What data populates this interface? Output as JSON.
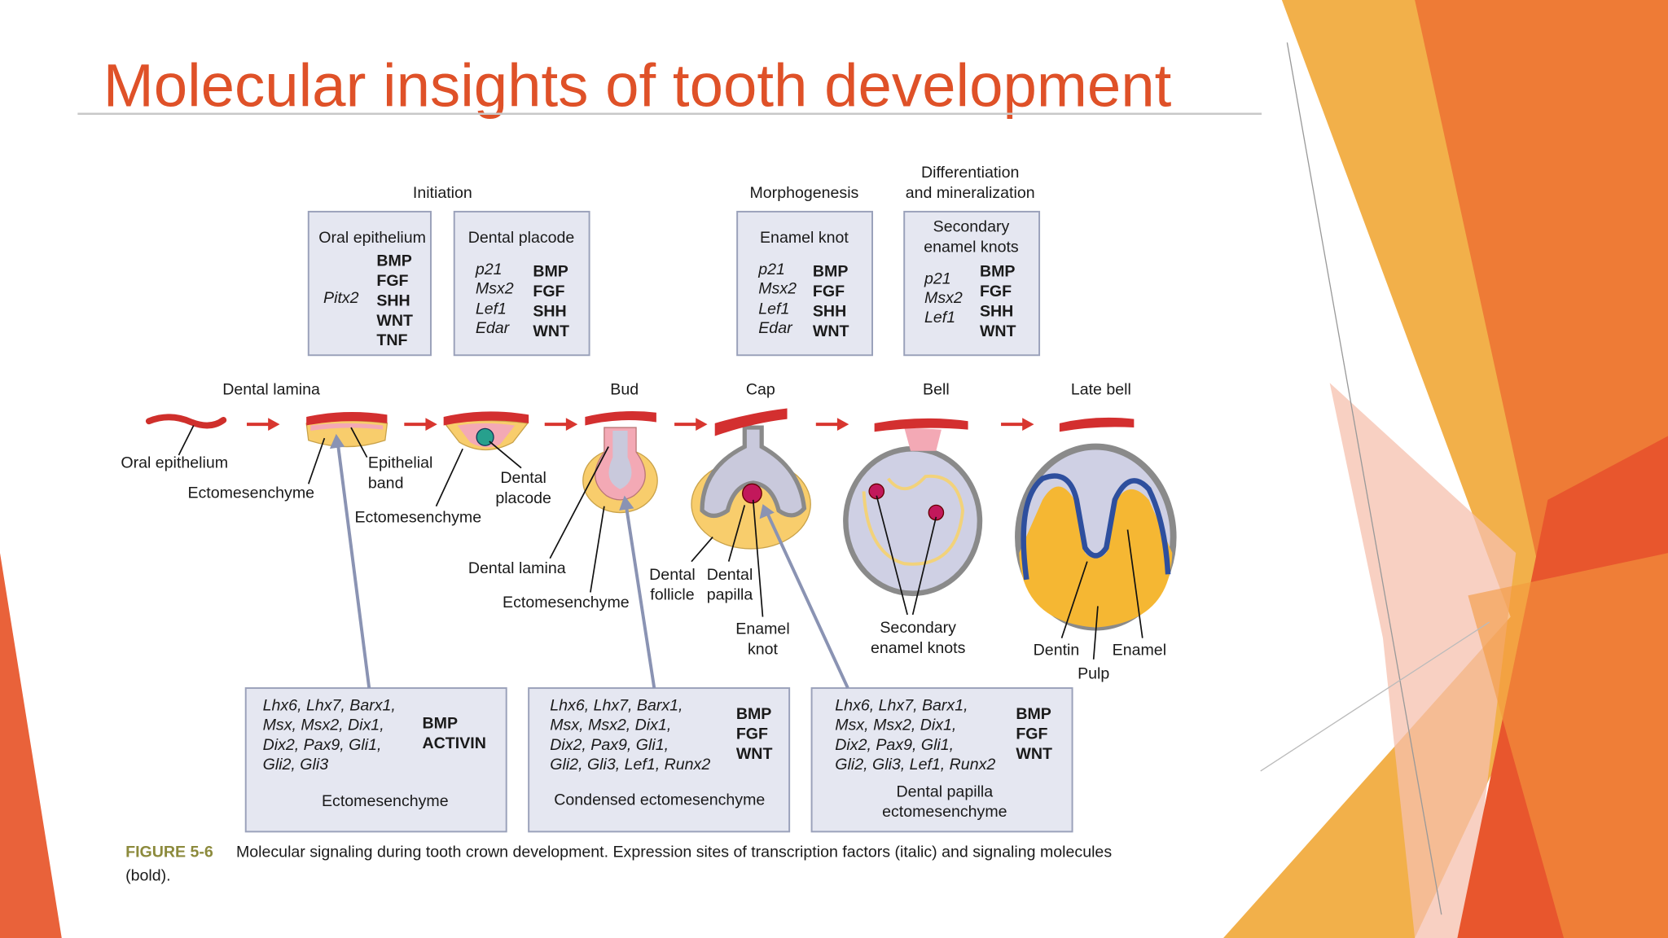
{
  "title": "Molecular insights of tooth development",
  "figure": {
    "phases": {
      "initiation": "Initiation",
      "morphogenesis": "Morphogenesis",
      "differentiation": [
        "Differentiation",
        "and mineralization"
      ]
    },
    "top_boxes": [
      {
        "title": [
          "Oral epithelium"
        ],
        "factors": [
          "Pitx2"
        ],
        "signals": [
          "BMP",
          "FGF",
          "SHH",
          "WNT",
          "TNF"
        ]
      },
      {
        "title": [
          "Dental placode"
        ],
        "factors": [
          "p21",
          "Msx2",
          "Lef1",
          "Edar"
        ],
        "signals": [
          "BMP",
          "FGF",
          "SHH",
          "WNT"
        ]
      },
      {
        "title": [
          "Enamel knot"
        ],
        "factors": [
          "p21",
          "Msx2",
          "Lef1",
          "Edar"
        ],
        "signals": [
          "BMP",
          "FGF",
          "SHH",
          "WNT"
        ]
      },
      {
        "title": [
          "Secondary",
          "enamel knots"
        ],
        "factors": [
          "p21",
          "Msx2",
          "Lef1"
        ],
        "signals": [
          "BMP",
          "FGF",
          "SHH",
          "WNT"
        ]
      }
    ],
    "stages": [
      "Dental lamina",
      "Bud",
      "Cap",
      "Bell",
      "Late bell"
    ],
    "labels": [
      [
        "Oral epithelium"
      ],
      [
        "Ectomesenchyme"
      ],
      [
        "Epithelial",
        "band"
      ],
      [
        "Dental",
        "placode"
      ],
      [
        "Ectomesenchyme"
      ],
      [
        "Dental lamina"
      ],
      [
        "Ectomesenchyme"
      ],
      [
        "Dental",
        "follicle"
      ],
      [
        "Dental",
        "papilla"
      ],
      [
        "Enamel",
        "knot"
      ],
      [
        "Secondary",
        "enamel knots"
      ],
      [
        "Dentin"
      ],
      [
        "Enamel"
      ],
      [
        "Pulp"
      ]
    ],
    "bottom_boxes": [
      {
        "factors": [
          "Lhx6, Lhx7, Barx1,",
          "Msx, Msx2, Dix1,",
          "Dix2, Pax9, Gli1,",
          "Gli2, Gli3"
        ],
        "signals": [
          "BMP",
          "ACTIVIN"
        ],
        "title": [
          "Ectomesenchyme"
        ]
      },
      {
        "factors": [
          "Lhx6, Lhx7, Barx1,",
          "Msx, Msx2, Dix1,",
          "Dix2, Pax9, Gli1,",
          "Gli2, Gli3, Lef1, Runx2"
        ],
        "signals": [
          "BMP",
          "FGF",
          "WNT"
        ],
        "title": [
          "Condensed ectomesenchyme"
        ]
      },
      {
        "factors": [
          "Lhx6, Lhx7, Barx1,",
          "Msx, Msx2, Dix1,",
          "Dix2, Pax9, Gli1,",
          "Gli2, Gli3, Lef1, Runx2"
        ],
        "signals": [
          "BMP",
          "FGF",
          "WNT"
        ],
        "title": [
          "Dental papilla",
          "ectomesenchyme"
        ]
      }
    ],
    "caption": {
      "figure": "FIGURE 5-6",
      "text": [
        "Molecular signaling during tooth crown development. Expression sites of transcription factors (italic) and signaling molecules",
        "(bold)."
      ]
    }
  }
}
